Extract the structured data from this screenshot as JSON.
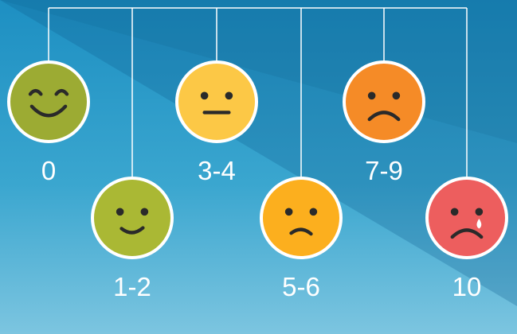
{
  "colors": {
    "wire": "#ffffff",
    "face_0": "#9cab33",
    "face_1_2": "#aab834",
    "face_3_4": "#fcc846",
    "face_5_6": "#fcaf1e",
    "face_7_9": "#f58b27",
    "face_10": "#ed5e5e"
  },
  "scale": [
    {
      "label": "0",
      "expression": "big-smile",
      "icon": "laughing-face-icon"
    },
    {
      "label": "1-2",
      "expression": "smile",
      "icon": "smiling-face-icon"
    },
    {
      "label": "3-4",
      "expression": "neutral",
      "icon": "neutral-face-icon"
    },
    {
      "label": "5-6",
      "expression": "slight-frown",
      "icon": "slightly-sad-face-icon"
    },
    {
      "label": "7-9",
      "expression": "frown",
      "icon": "sad-face-icon"
    },
    {
      "label": "10",
      "expression": "crying",
      "icon": "crying-face-icon"
    }
  ]
}
